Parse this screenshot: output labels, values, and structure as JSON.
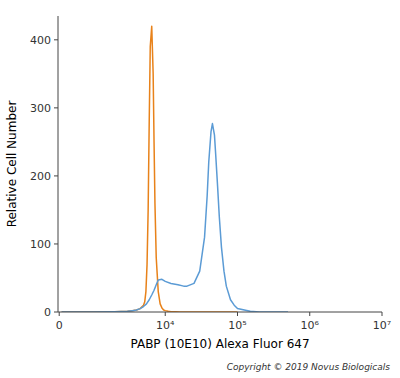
{
  "chart_data": {
    "type": "line",
    "xlabel": "PABP (10E10) Alexa Fluor 647",
    "ylabel": "Relative Cell Number",
    "annotations": [
      "Copyright © 2019 Novus Biologicals"
    ],
    "log": "x",
    "grid": false,
    "xlim": [
      -50,
      10000000
    ],
    "xticks": [
      0,
      {
        "value": 10000,
        "label": "10⁴"
      },
      {
        "value": 100000,
        "label": "10⁵"
      },
      {
        "value": 1000000,
        "label": "10⁶"
      },
      {
        "value": 10000000,
        "label": "10⁷"
      }
    ],
    "ylim": [
      0,
      435
    ],
    "yticks": [
      0,
      100,
      200,
      300,
      400
    ],
    "series": [
      {
        "color": "#E8821A",
        "x": [
          100,
          500,
          1000,
          2000,
          3000,
          3500,
          4000,
          4500,
          5000,
          5200,
          5400,
          5600,
          5800,
          6000,
          6200,
          6500,
          6800,
          7000,
          7200,
          7500,
          8000,
          8500,
          9000,
          9500,
          10000,
          11000,
          12000,
          14000,
          16000,
          20000,
          30000,
          50000,
          100000
        ],
        "values": [
          0,
          0,
          0,
          0.5,
          1,
          2,
          3,
          5,
          10,
          15,
          30,
          70,
          150,
          280,
          390,
          420,
          350,
          250,
          160,
          80,
          30,
          12,
          6,
          3,
          2,
          1,
          0.5,
          0.3,
          0.1,
          0,
          0,
          0,
          0
        ]
      },
      {
        "color": "#5B9BD5",
        "x": [
          100,
          500,
          1000,
          2000,
          3000,
          3500,
          4000,
          4500,
          5000,
          5500,
          6000,
          6500,
          7000,
          7500,
          8000,
          9000,
          10000,
          12000,
          15000,
          18000,
          20000,
          25000,
          30000,
          35000,
          38000,
          40000,
          43000,
          45000,
          48000,
          50000,
          53000,
          56000,
          60000,
          65000,
          70000,
          80000,
          90000,
          100000,
          150000,
          200000,
          500000
        ],
        "values": [
          0,
          0,
          0,
          0.5,
          1,
          2,
          3,
          5,
          8,
          12,
          18,
          25,
          32,
          40,
          47,
          48,
          45,
          42,
          40,
          38,
          38,
          42,
          60,
          110,
          170,
          220,
          265,
          277,
          260,
          230,
          185,
          140,
          95,
          60,
          38,
          18,
          10,
          5,
          1,
          0,
          0
        ]
      }
    ]
  }
}
